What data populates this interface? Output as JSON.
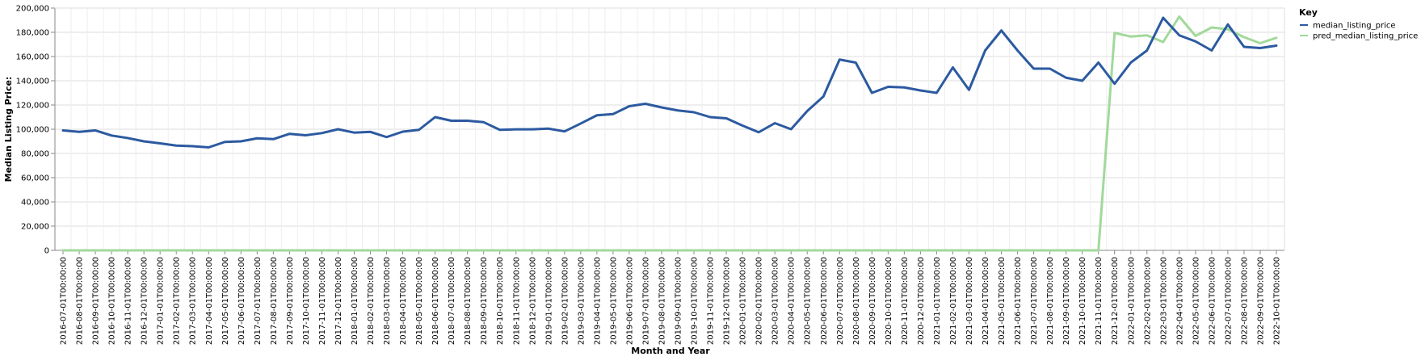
{
  "chart_data": {
    "type": "line",
    "xlabel": "Month and Year",
    "ylabel": "Median Listing Price:",
    "ylim": [
      0,
      200000
    ],
    "y_ticks": [
      0,
      20000,
      40000,
      60000,
      80000,
      100000,
      120000,
      140000,
      160000,
      180000,
      200000
    ],
    "y_tick_labels": [
      "0",
      "20,000",
      "40,000",
      "60,000",
      "80,000",
      "100,000",
      "120,000",
      "140,000",
      "160,000",
      "180,000",
      "200,000"
    ],
    "grid": true,
    "legend": {
      "title": "Key",
      "placement": "right"
    },
    "categories": [
      "2016-07-01T00:00:00",
      "2016-08-01T00:00:00",
      "2016-09-01T00:00:00",
      "2016-10-01T00:00:00",
      "2016-11-01T00:00:00",
      "2016-12-01T00:00:00",
      "2017-01-01T00:00:00",
      "2017-02-01T00:00:00",
      "2017-03-01T00:00:00",
      "2017-04-01T00:00:00",
      "2017-05-01T00:00:00",
      "2017-06-01T00:00:00",
      "2017-07-01T00:00:00",
      "2017-08-01T00:00:00",
      "2017-09-01T00:00:00",
      "2017-10-01T00:00:00",
      "2017-11-01T00:00:00",
      "2017-12-01T00:00:00",
      "2018-01-01T00:00:00",
      "2018-02-01T00:00:00",
      "2018-03-01T00:00:00",
      "2018-04-01T00:00:00",
      "2018-05-01T00:00:00",
      "2018-06-01T00:00:00",
      "2018-07-01T00:00:00",
      "2018-08-01T00:00:00",
      "2018-09-01T00:00:00",
      "2018-10-01T00:00:00",
      "2018-11-01T00:00:00",
      "2018-12-01T00:00:00",
      "2019-01-01T00:00:00",
      "2019-02-01T00:00:00",
      "2019-03-01T00:00:00",
      "2019-04-01T00:00:00",
      "2019-05-01T00:00:00",
      "2019-06-01T00:00:00",
      "2019-07-01T00:00:00",
      "2019-08-01T00:00:00",
      "2019-09-01T00:00:00",
      "2019-10-01T00:00:00",
      "2019-11-01T00:00:00",
      "2019-12-01T00:00:00",
      "2020-01-01T00:00:00",
      "2020-02-01T00:00:00",
      "2020-03-01T00:00:00",
      "2020-04-01T00:00:00",
      "2020-05-01T00:00:00",
      "2020-06-01T00:00:00",
      "2020-07-01T00:00:00",
      "2020-08-01T00:00:00",
      "2020-09-01T00:00:00",
      "2020-10-01T00:00:00",
      "2020-11-01T00:00:00",
      "2020-12-01T00:00:00",
      "2021-01-01T00:00:00",
      "2021-02-01T00:00:00",
      "2021-03-01T00:00:00",
      "2021-04-01T00:00:00",
      "2021-05-01T00:00:00",
      "2021-06-01T00:00:00",
      "2021-07-01T00:00:00",
      "2021-08-01T00:00:00",
      "2021-09-01T00:00:00",
      "2021-10-01T00:00:00",
      "2021-11-01T00:00:00",
      "2021-12-01T00:00:00",
      "2022-01-01T00:00:00",
      "2022-02-01T00:00:00",
      "2022-03-01T00:00:00",
      "2022-04-01T00:00:00",
      "2022-05-01T00:00:00",
      "2022-06-01T00:00:00",
      "2022-07-01T00:00:00",
      "2022-08-01T00:00:00",
      "2022-09-01T00:00:00",
      "2022-10-01T00:00:00"
    ],
    "series": [
      {
        "name": "median_listing_price",
        "color": "#2c5aa0",
        "values": [
          99000,
          97800,
          99000,
          94800,
          92700,
          90000,
          88300,
          86500,
          86000,
          85000,
          89500,
          90000,
          92500,
          91800,
          96200,
          95000,
          96800,
          100000,
          97200,
          97800,
          93500,
          98000,
          99500,
          110000,
          107000,
          107000,
          105800,
          99500,
          99900,
          99900,
          100500,
          98200,
          104700,
          111500,
          112500,
          119000,
          121000,
          118000,
          115500,
          114000,
          110000,
          109000,
          103000,
          97500,
          105000,
          100000,
          115000,
          127000,
          157500,
          155000,
          130000,
          135000,
          134500,
          132000,
          130000,
          151000,
          132500,
          165000,
          181500,
          165000,
          150000,
          150000,
          142500,
          140000,
          155000,
          137500,
          155000,
          165000,
          192000,
          177500,
          172500,
          165000,
          186500,
          168000,
          167000,
          169000
        ]
      },
      {
        "name": "pred_median_listing_price",
        "color": "#a1d99b",
        "values": [
          0,
          0,
          0,
          0,
          0,
          0,
          0,
          0,
          0,
          0,
          0,
          0,
          0,
          0,
          0,
          0,
          0,
          0,
          0,
          0,
          0,
          0,
          0,
          0,
          0,
          0,
          0,
          0,
          0,
          0,
          0,
          0,
          0,
          0,
          0,
          0,
          0,
          0,
          0,
          0,
          0,
          0,
          0,
          0,
          0,
          0,
          0,
          0,
          0,
          0,
          0,
          0,
          0,
          0,
          0,
          0,
          0,
          0,
          0,
          0,
          0,
          0,
          0,
          0,
          0,
          179500,
          176500,
          177500,
          172000,
          193000,
          177000,
          184000,
          182500,
          176000,
          171000,
          175500
        ]
      }
    ]
  }
}
